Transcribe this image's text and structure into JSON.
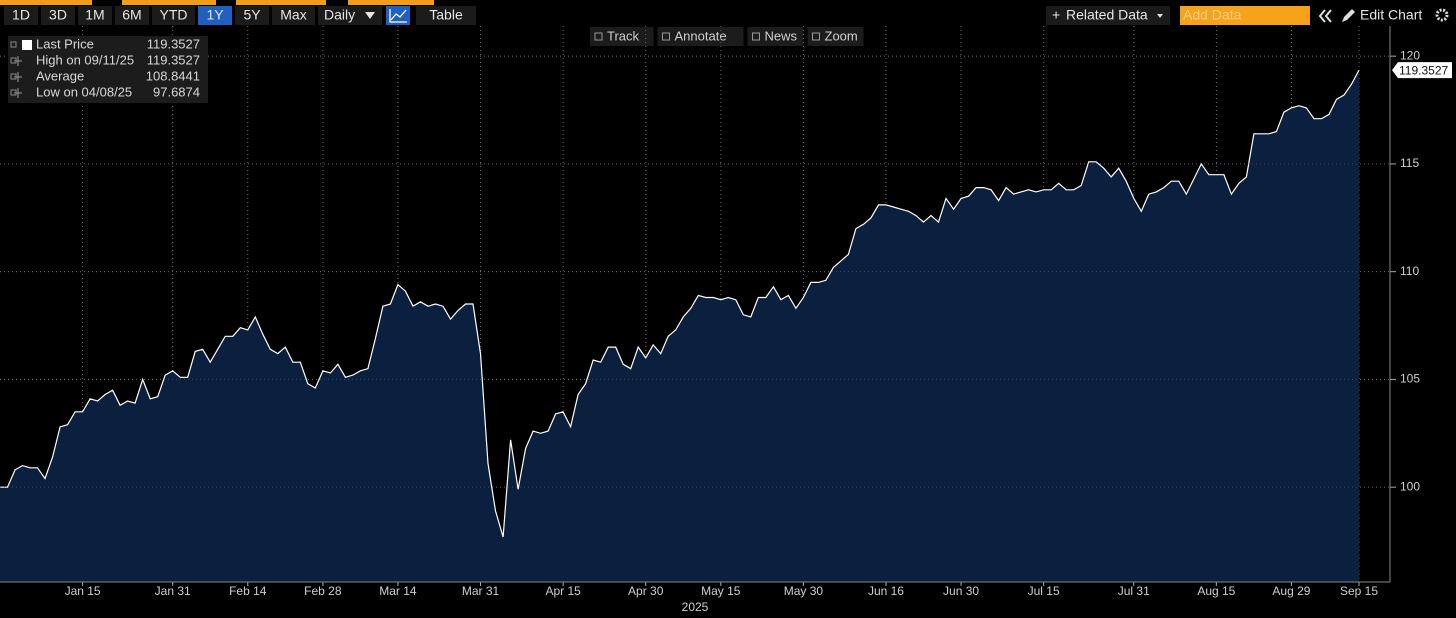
{
  "toolbar": {
    "ranges": [
      "1D",
      "3D",
      "1M",
      "6M",
      "YTD",
      "1Y",
      "5Y",
      "Max"
    ],
    "selected": 5,
    "frequency": "Daily",
    "table": "Table",
    "related_data": "Related Data",
    "add_data": "Add Data",
    "edit_chart": "Edit Chart"
  },
  "tools": [
    "Track",
    "Annotate",
    "News",
    "Zoom"
  ],
  "chart_data": {
    "type": "area",
    "x_label": "2025",
    "color": "#ffffff",
    "fill": "#0b1f3e",
    "grid": true,
    "stats": [
      {
        "label": "Last Price",
        "value": 119.3527
      },
      {
        "label": "High on 09/11/25",
        "value": 119.3527
      },
      {
        "label": "Average",
        "value": 108.8441
      },
      {
        "label": "Low on 04/08/25",
        "value": 97.6874
      }
    ],
    "ylim": [
      95.6,
      121.4
    ],
    "yticks": [
      100,
      105,
      110,
      115,
      120
    ],
    "categories": [
      null,
      null,
      null,
      null,
      null,
      null,
      null,
      null,
      null,
      null,
      null,
      "Jan 15",
      null,
      null,
      null,
      null,
      null,
      null,
      null,
      null,
      null,
      null,
      null,
      "Jan 31",
      null,
      null,
      null,
      null,
      null,
      null,
      null,
      null,
      null,
      "Feb 14",
      null,
      null,
      null,
      null,
      null,
      null,
      null,
      null,
      null,
      "Feb 28",
      null,
      null,
      null,
      null,
      null,
      null,
      null,
      null,
      null,
      "Mar 14",
      null,
      null,
      null,
      null,
      null,
      null,
      null,
      null,
      null,
      null,
      "Mar 31",
      null,
      null,
      null,
      null,
      null,
      null,
      null,
      null,
      null,
      null,
      "Apr 15",
      null,
      null,
      null,
      null,
      null,
      null,
      null,
      null,
      null,
      null,
      "Apr 30",
      null,
      null,
      null,
      null,
      null,
      null,
      null,
      null,
      null,
      "May 15",
      null,
      null,
      null,
      null,
      null,
      null,
      null,
      null,
      null,
      null,
      "May 30",
      null,
      null,
      null,
      null,
      null,
      null,
      null,
      null,
      null,
      null,
      "Jun 16",
      null,
      null,
      null,
      null,
      null,
      null,
      null,
      null,
      null,
      "Jun 30",
      null,
      null,
      null,
      null,
      null,
      null,
      null,
      null,
      null,
      null,
      "Jul 15",
      null,
      null,
      null,
      null,
      null,
      null,
      null,
      null,
      null,
      null,
      null,
      "Jul 31",
      null,
      null,
      null,
      null,
      null,
      null,
      null,
      null,
      null,
      null,
      "Aug 15",
      null,
      null,
      null,
      null,
      null,
      null,
      null,
      null,
      null,
      "Aug 29",
      null,
      null,
      null,
      null,
      null,
      null,
      null,
      null,
      "Sep 15"
    ],
    "values": [
      100.0,
      100.0,
      100.8,
      101.0,
      100.9,
      100.9,
      100.4,
      101.4,
      102.8,
      102.9,
      103.5,
      103.5,
      104.1,
      104.0,
      104.3,
      104.5,
      103.8,
      104.0,
      103.9,
      105.0,
      104.1,
      104.2,
      105.2,
      105.4,
      105.1,
      105.1,
      106.3,
      106.4,
      105.8,
      106.4,
      107.0,
      107.0,
      107.4,
      107.3,
      107.9,
      107.1,
      106.4,
      106.2,
      106.5,
      105.8,
      105.8,
      104.8,
      104.6,
      105.4,
      105.3,
      105.7,
      105.1,
      105.2,
      105.4,
      105.5,
      106.9,
      108.4,
      108.5,
      109.4,
      109.1,
      108.4,
      108.6,
      108.4,
      108.5,
      108.4,
      107.8,
      108.2,
      108.5,
      108.5,
      106.2,
      101.1,
      98.9,
      97.6874,
      102.2,
      99.9,
      101.8,
      102.6,
      102.5,
      102.6,
      103.4,
      103.5,
      102.8,
      104.3,
      104.8,
      105.9,
      105.8,
      106.5,
      106.5,
      105.7,
      105.5,
      106.5,
      106.0,
      106.6,
      106.2,
      107.0,
      107.3,
      107.9,
      108.3,
      108.9,
      108.8,
      108.8,
      108.7,
      108.8,
      108.7,
      108.0,
      107.9,
      108.8,
      108.8,
      109.3,
      108.7,
      108.9,
      108.3,
      108.8,
      109.5,
      109.5,
      109.6,
      110.2,
      110.5,
      110.8,
      112.0,
      112.2,
      112.5,
      113.1,
      113.1,
      113.0,
      112.9,
      112.8,
      112.6,
      112.3,
      112.6,
      112.3,
      113.4,
      112.9,
      113.4,
      113.5,
      113.9,
      113.9,
      113.8,
      113.3,
      113.9,
      113.6,
      113.7,
      113.8,
      113.7,
      113.8,
      113.8,
      114.1,
      113.8,
      113.8,
      114.0,
      115.1,
      115.1,
      114.8,
      114.4,
      114.8,
      114.2,
      113.4,
      112.8,
      113.6,
      113.7,
      113.9,
      114.2,
      114.2,
      113.6,
      114.3,
      115.0,
      114.5,
      114.5,
      114.5,
      113.6,
      114.1,
      114.4,
      116.4,
      116.4,
      116.4,
      116.5,
      117.4,
      117.6,
      117.7,
      117.6,
      117.1,
      117.1,
      117.3,
      118.0,
      118.2,
      118.7,
      119.3527
    ]
  }
}
